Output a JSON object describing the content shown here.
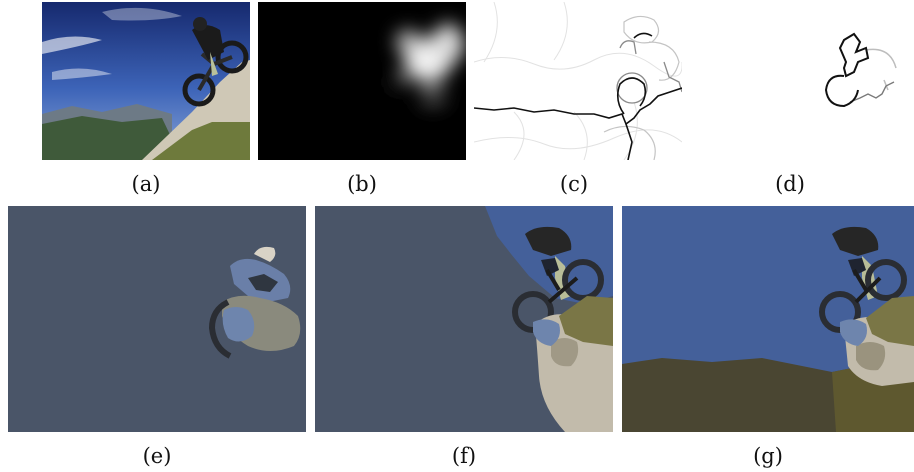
{
  "figure": {
    "labels": {
      "a": "(a)",
      "b": "(b)",
      "c": "(c)",
      "d": "(d)",
      "e": "(e)",
      "f": "(f)",
      "g": "(g)"
    }
  },
  "colors": {
    "sky_dark": "#1d2f7a",
    "sky_light": "#4a6fc4",
    "slate": "#4a5568",
    "blue_region": "#44609a",
    "olive": "#4a4632",
    "olive_light": "#7d7745",
    "rock": "#c9c2b3"
  }
}
